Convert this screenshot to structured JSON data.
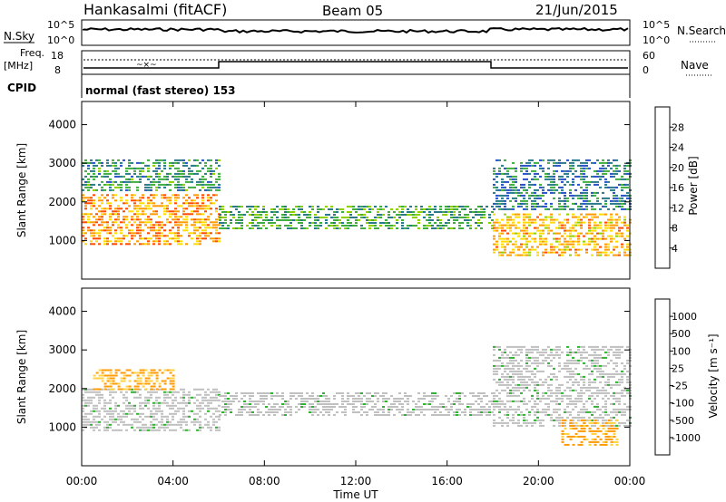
{
  "header": {
    "station": "Hankasalmi (fitACF)",
    "beam": "Beam 05",
    "date": "21/Jun/2015"
  },
  "top_panels": {
    "nsky_label": "N.Sky",
    "nsky_ticks": [
      "10^5",
      "10^0"
    ],
    "nsearch_label": "N.Search",
    "nsearch_ticks": [
      "10^5",
      "10^0"
    ],
    "freq_label": "Freq.",
    "freq_unit": "[MHz]",
    "freq_ticks": [
      "18",
      "8"
    ],
    "nave_label": "Nave",
    "nave_ticks": [
      "60",
      "0"
    ],
    "cpid_label": "CPID",
    "cpid_value": "normal (fast stereo) 153"
  },
  "colorbars": {
    "power": {
      "label": "Power [dB]",
      "ticks": [
        "28",
        "24",
        "20",
        "16",
        "12",
        "8",
        "4"
      ],
      "colors": [
        "#ff0000",
        "#ff4a00",
        "#ff9a00",
        "#ffdc00",
        "#8fd000",
        "#3fae3f",
        "#2a7a8a",
        "#2a52c8",
        "#0000ff"
      ]
    },
    "velocity": {
      "label": "Velocity [m s⁻¹]",
      "ticks": [
        "1000",
        "500",
        "100",
        "25",
        "-25",
        "-100",
        "-500",
        "-1000"
      ],
      "colors": [
        "#1a2cc8",
        "#2a64c8",
        "#2a8a78",
        "#34b034",
        "#c0c0c0",
        "#ffd23c",
        "#ff9a00",
        "#ff5a00",
        "#ff0000"
      ]
    }
  },
  "chart_data": [
    {
      "type": "heatmap",
      "title": "Power",
      "ylabel": "Slant Range [km]",
      "xlabel": "",
      "ylim": [
        0,
        4600
      ],
      "yticks": [
        1000,
        2000,
        3000,
        4000
      ],
      "xlim": [
        0,
        24
      ],
      "x_unit": "hours UT",
      "colorbar": {
        "label": "Power [dB]",
        "range": [
          0,
          32
        ],
        "ticks": [
          4,
          8,
          12,
          16,
          20,
          24,
          28
        ]
      },
      "echo_bands": [
        {
          "t_start": 0,
          "t_end": 6,
          "range_km": [
            900,
            2200
          ],
          "power_dB": 24
        },
        {
          "t_start": 0,
          "t_end": 6,
          "range_km": [
            2300,
            3100
          ],
          "power_dB": 10
        },
        {
          "t_start": 6,
          "t_end": 18,
          "range_km": [
            1300,
            1900
          ],
          "power_dB": 12
        },
        {
          "t_start": 18,
          "t_end": 24,
          "range_km": [
            600,
            1700
          ],
          "power_dB": 22
        },
        {
          "t_start": 18,
          "t_end": 24,
          "range_km": [
            1800,
            3100
          ],
          "power_dB": 8
        }
      ]
    },
    {
      "type": "heatmap",
      "title": "Velocity",
      "ylabel": "Slant Range [km]",
      "xlabel": "Time UT",
      "ylim": [
        0,
        4600
      ],
      "yticks": [
        1000,
        2000,
        3000,
        4000
      ],
      "xlim": [
        0,
        24
      ],
      "x_unit": "hours UT",
      "xticks": [
        "00:00",
        "04:00",
        "08:00",
        "12:00",
        "16:00",
        "20:00",
        "00:00"
      ],
      "colorbar": {
        "label": "Velocity [m s⁻¹]",
        "range": [
          -1000,
          1000
        ],
        "ticks": [
          -1000,
          -500,
          -100,
          -25,
          25,
          100,
          500,
          1000
        ]
      },
      "echo_bands": [
        {
          "t_start": 0,
          "t_end": 6,
          "range_km": [
            900,
            2000
          ],
          "velocity": 0
        },
        {
          "t_start": 0.5,
          "t_end": 4.0,
          "range_km": [
            2000,
            2500
          ],
          "velocity": -300
        },
        {
          "t_start": 6,
          "t_end": 18,
          "range_km": [
            1300,
            1900
          ],
          "velocity": 0
        },
        {
          "t_start": 18,
          "t_end": 24,
          "range_km": [
            1000,
            3100
          ],
          "velocity": 0
        },
        {
          "t_start": 21,
          "t_end": 23.5,
          "range_km": [
            500,
            1200
          ],
          "velocity": -300
        }
      ]
    }
  ]
}
